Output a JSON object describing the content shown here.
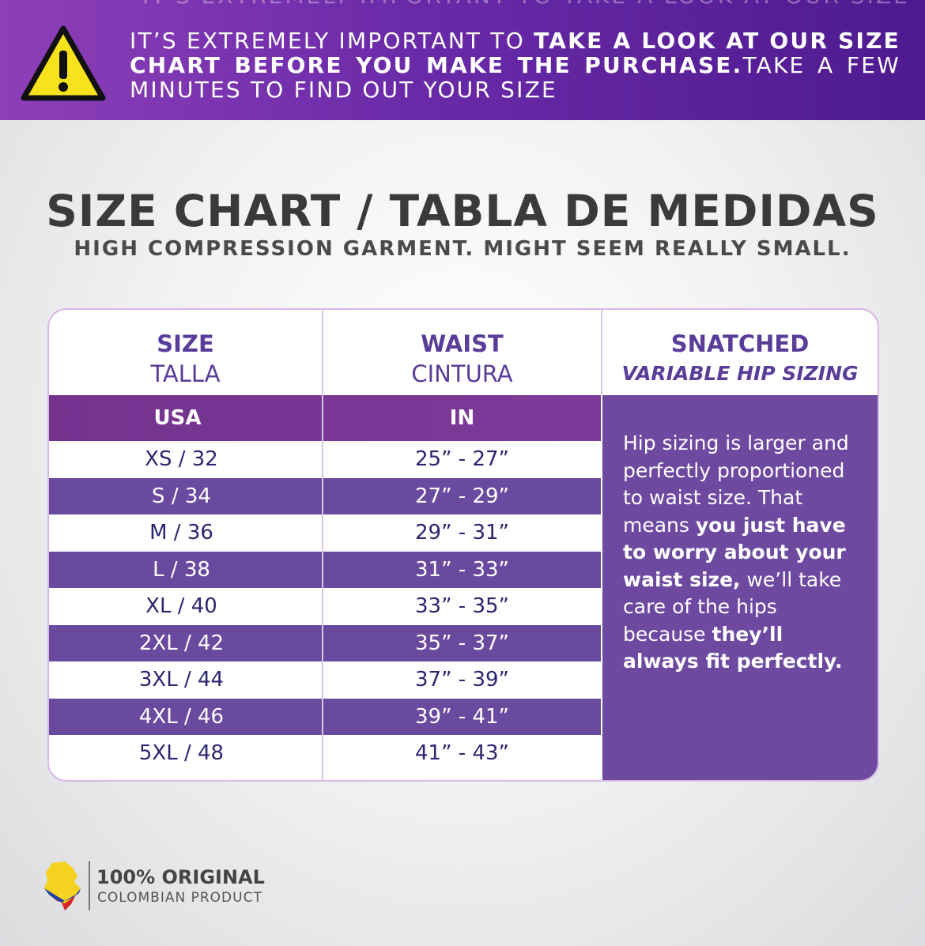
{
  "banner": {
    "ghost": "IT'S EXTREMELY IMPORTANT TO TAKE A LOOK AT OUR SIZE",
    "part1": "IT’S EXTREMELY IMPORTANT TO ",
    "part2": "TAKE A LOOK AT OUR SIZE CHART BEFORE YOU MAKE THE PURCHASE.",
    "part3": "TAKE A FEW MINUTES TO FIND OUT YOUR SIZE"
  },
  "title": "SIZE CHART / TABLA DE MEDIDAS",
  "subtitle": "HIGH COMPRESSION GARMENT. MIGHT SEEM REALLY SMALL.",
  "table": {
    "col1_title": "SIZE",
    "col1_sub": "TALLA",
    "col2_title": "WAIST",
    "col2_sub": "CINTURA",
    "col3_title": "SNATCHED",
    "col3_sub": "VARIABLE HIP SIZING",
    "unit1": "USA",
    "unit2": "IN",
    "rows": [
      {
        "size": "XS / 32",
        "waist": "25” - 27”"
      },
      {
        "size": "S / 34",
        "waist": "27” - 29”"
      },
      {
        "size": "M / 36",
        "waist": "29” - 31”"
      },
      {
        "size": "L / 38",
        "waist": "31” - 33”"
      },
      {
        "size": "XL / 40",
        "waist": "33” - 35”"
      },
      {
        "size": "2XL / 42",
        "waist": "35” - 37”"
      },
      {
        "size": "3XL / 44",
        "waist": "37” - 39”"
      },
      {
        "size": "4XL / 46",
        "waist": "39” - 41”"
      },
      {
        "size": "5XL / 48",
        "waist": "41” - 43”"
      }
    ],
    "hip": {
      "t1": "Hip sizing is larger and perfectly proportioned to waist size. That means ",
      "b1": "you just have to worry about your waist size,",
      "t2": " we’ll take care of the hips because ",
      "b2": "they’ll always fit perfectly."
    }
  },
  "badge": {
    "line1": "100% ORIGINAL",
    "line2": "COLOMBIAN PRODUCT"
  },
  "colors": {
    "banner_purple": "#6a2aa8",
    "row_dark": "#6a4a9e",
    "header_text": "#5a3d99",
    "row_text": "#2c2670"
  }
}
